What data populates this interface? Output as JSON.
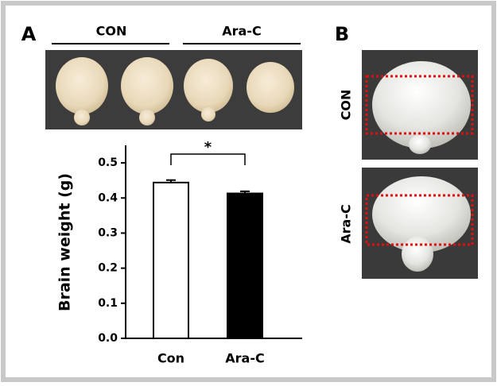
{
  "panel_labels": [
    "A",
    "B"
  ],
  "group_labels": [
    "CON",
    "Ara-C"
  ],
  "photo_labels": [
    "CON",
    "Ara-C"
  ],
  "chart_data": {
    "type": "bar",
    "y_label": "Brain weight (g)",
    "categories": [
      "Con",
      "Ara-C"
    ],
    "values": [
      0.444,
      0.413
    ],
    "errors": [
      0.007,
      0.006
    ],
    "colors": [
      "#ffffff",
      "#000000"
    ],
    "ylim": [
      0,
      0.55
    ],
    "yticks": [
      {
        "value": 0,
        "label": "0.0"
      },
      0.1,
      0.2,
      0.3,
      0.4,
      0.5
    ],
    "annotation": "*"
  }
}
